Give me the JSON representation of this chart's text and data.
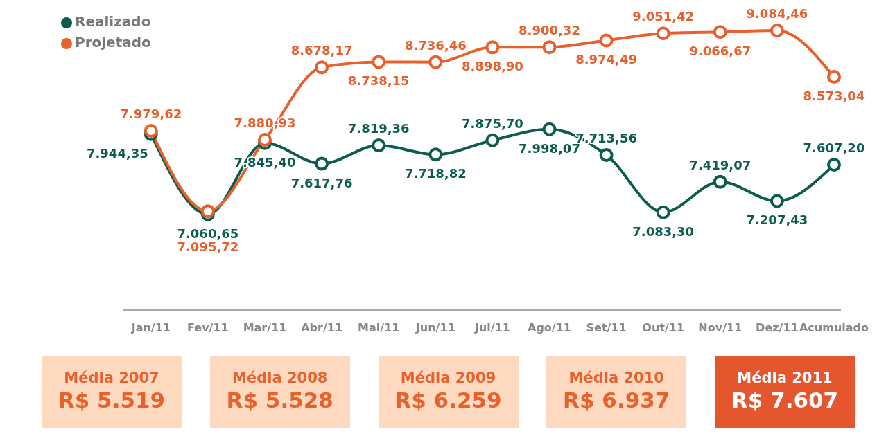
{
  "chart_data": {
    "type": "line",
    "categories": [
      "Jan/11",
      "Fev/11",
      "Mar/11",
      "Abr/11",
      "Mai/11",
      "Jun/11",
      "Jul/11",
      "Ago/11",
      "Set/11",
      "Out/11",
      "Nov/11",
      "Dez/11",
      "Acumulado"
    ],
    "series": [
      {
        "name": "Realizado",
        "color": "#0b5e4d",
        "values": [
          7944.35,
          7060.65,
          7845.4,
          7617.76,
          7819.36,
          7718.82,
          7875.7,
          7998.07,
          7713.56,
          7083.3,
          7419.07,
          7207.43,
          7607.2
        ],
        "value_labels": [
          "7.944,35",
          "7.060,65",
          "7.845,40",
          "7.617,76",
          "7.819,36",
          "7.718,82",
          "7.875,70",
          "7.998,07",
          "7.713,56",
          "7.083,30",
          "7.419,07",
          "7.207,43",
          "7.607,20"
        ]
      },
      {
        "name": "Projetado",
        "color": "#e8602c",
        "values": [
          7979.62,
          7095.72,
          7880.93,
          8678.17,
          8738.15,
          8736.46,
          8898.9,
          8900.32,
          8974.49,
          9051.42,
          9066.67,
          9084.46,
          8573.04
        ],
        "value_labels": [
          "7.979,62",
          "7.095,72",
          "7.880,93",
          "8.678,17",
          "8.738,15",
          "8.736,46",
          "8.898,90",
          "8.900,32",
          "8.974,49",
          "9.051,42",
          "9.066,67",
          "9.084,46",
          "8.573,04"
        ]
      }
    ],
    "legend": "top left",
    "marker": "circle",
    "line_style": "solid",
    "grid": false,
    "tick_labels": "x",
    "annotations": [
      "Média 2007",
      "R$ 5.519",
      "Média 2008",
      "R$ 5.528",
      "Média 2009",
      "R$ 6.259",
      "Média 2010",
      "R$ 6.937",
      "Média 2011",
      "R$ 7.607"
    ]
  }
}
